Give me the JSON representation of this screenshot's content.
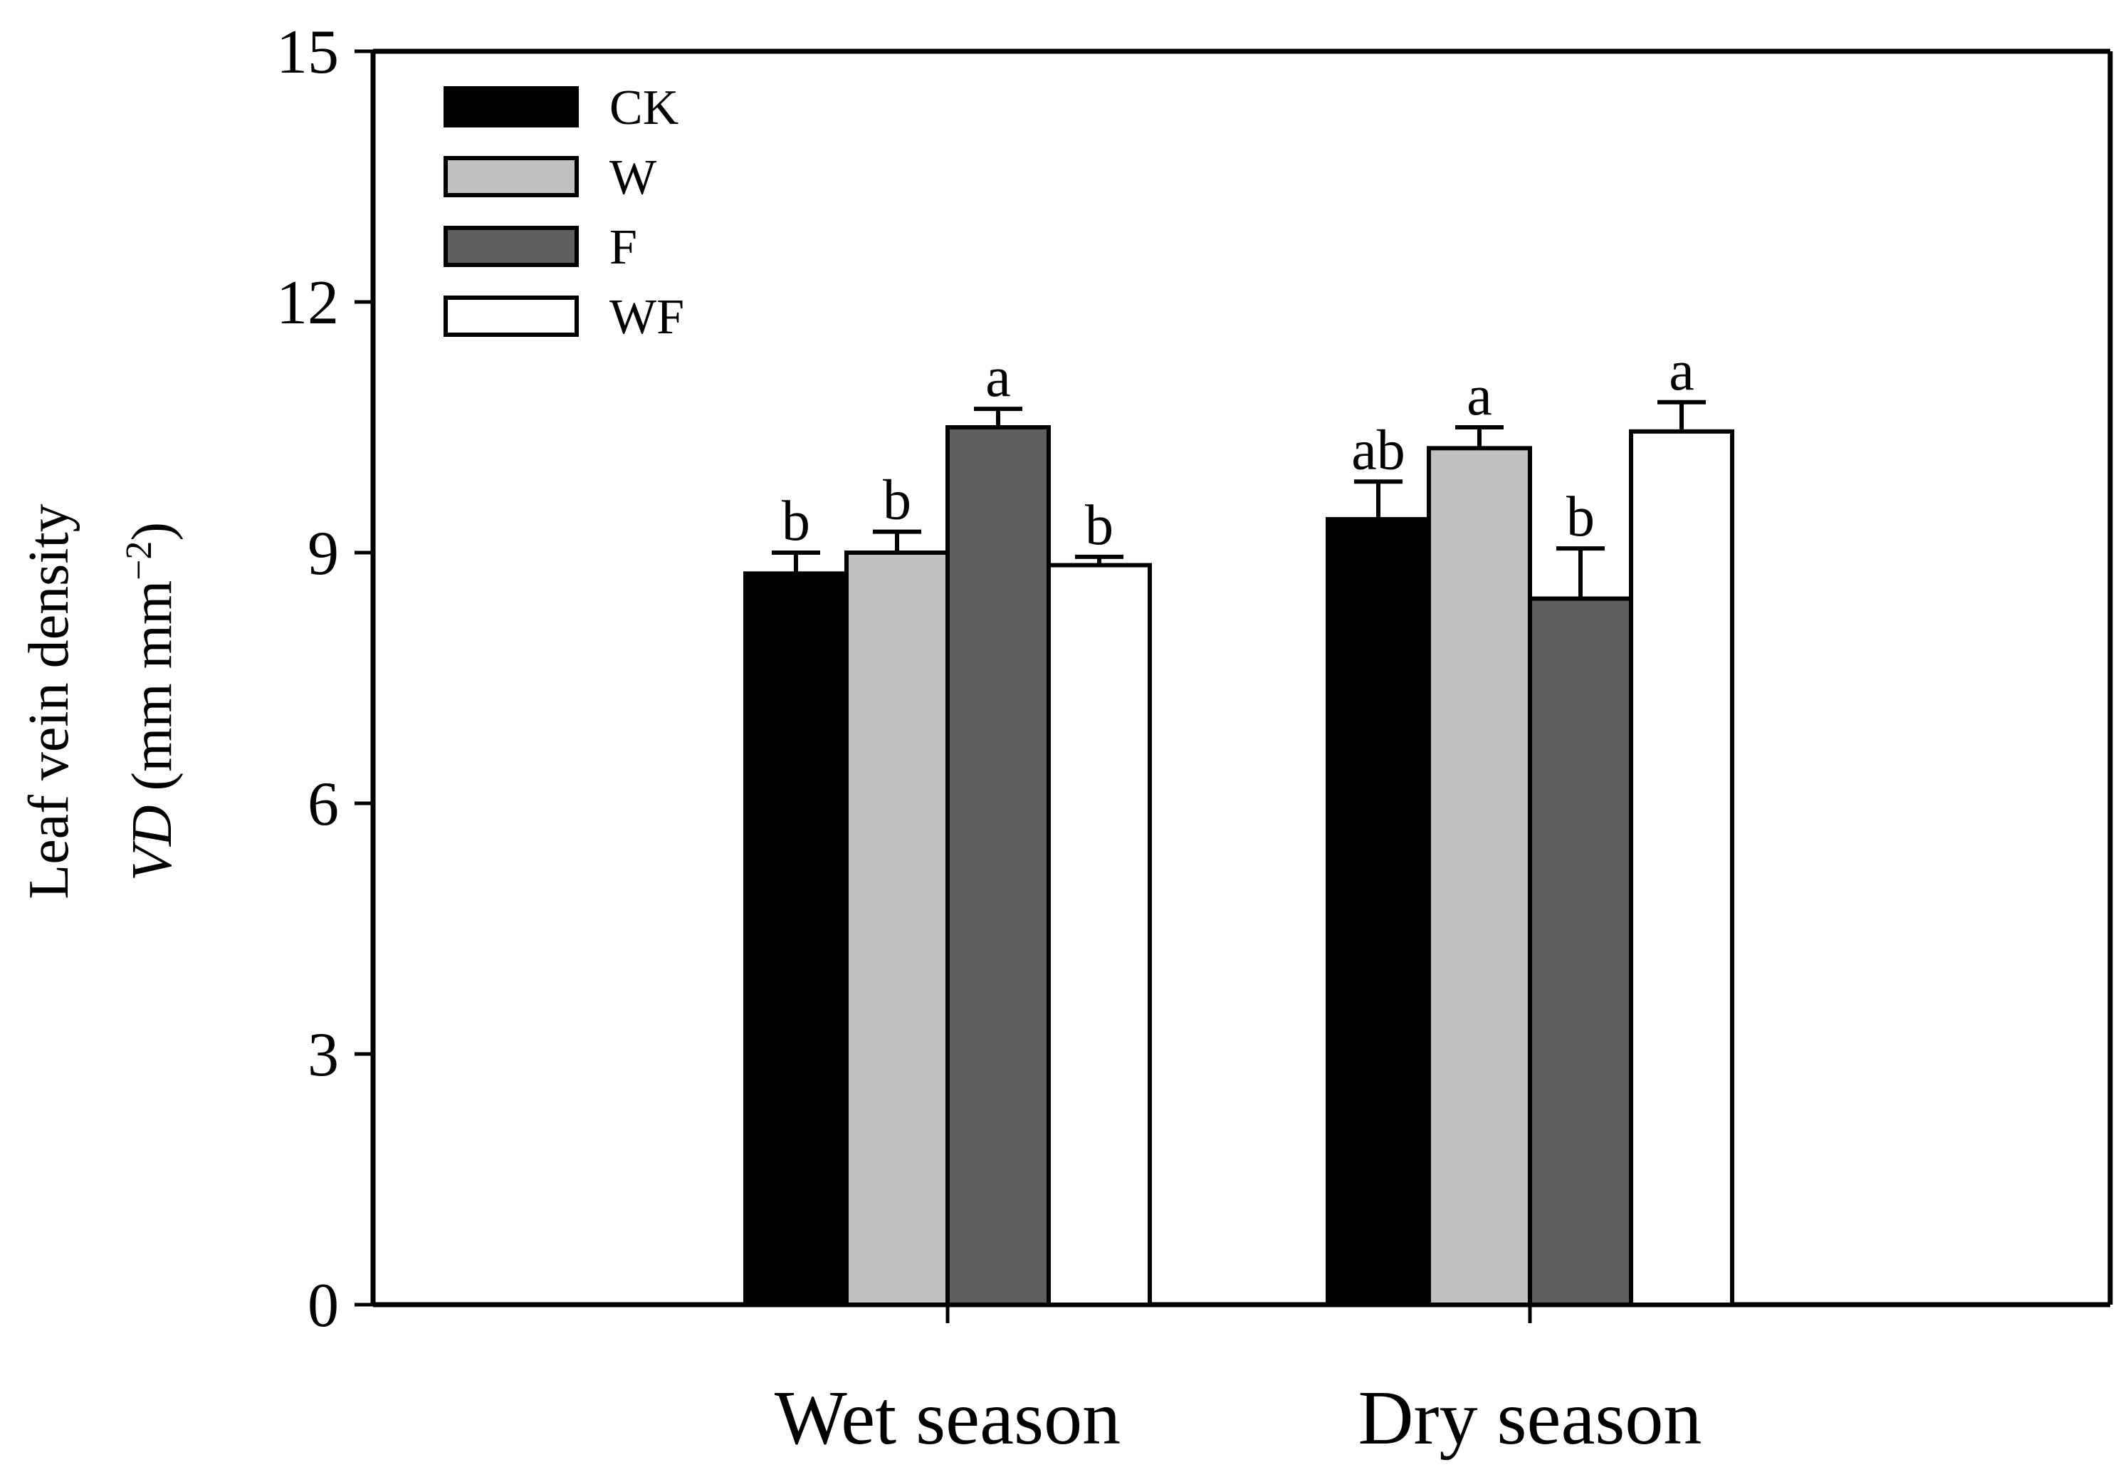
{
  "chart_data": {
    "type": "bar",
    "title": "",
    "categories": [
      "Wet season",
      "Dry season"
    ],
    "series": [
      {
        "name": "CK",
        "color": "#000000",
        "values": [
          8.75,
          9.4
        ],
        "errors": [
          0.25,
          0.45
        ],
        "letters": [
          "b",
          "ab"
        ]
      },
      {
        "name": "W",
        "color": "#c0c0c0",
        "values": [
          9.0,
          10.25
        ],
        "errors": [
          0.25,
          0.25
        ],
        "letters": [
          "b",
          "a"
        ]
      },
      {
        "name": "F",
        "color": "#606060",
        "values": [
          10.5,
          8.45
        ],
        "errors": [
          0.22,
          0.6
        ],
        "letters": [
          "a",
          "b"
        ]
      },
      {
        "name": "WF",
        "color": "#ffffff",
        "values": [
          8.85,
          10.45
        ],
        "errors": [
          0.1,
          0.35
        ],
        "letters": [
          "b",
          "a"
        ]
      }
    ],
    "ylabel_line1": "Leaf vein density",
    "ylabel_var": "VD",
    "ylabel_units_prefix": "(mm mm",
    "ylabel_units_sup": "−2",
    "ylabel_units_suffix": ")",
    "xlabel": "",
    "ylim": [
      0,
      15
    ],
    "yticks": [
      "0",
      "3",
      "6",
      "9",
      "12",
      "15"
    ],
    "grid": false,
    "legend_position": "top-left"
  }
}
